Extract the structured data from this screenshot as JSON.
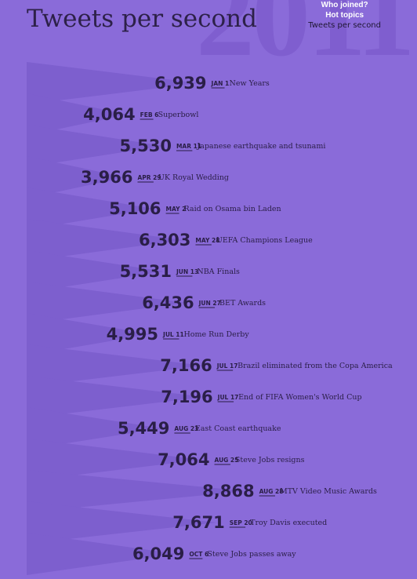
{
  "header": {
    "title": "Tweets per second",
    "background_year": "2011"
  },
  "nav": {
    "items": [
      {
        "label": "Who joined?",
        "style": "bold"
      },
      {
        "label": "Hot topics",
        "style": "bold"
      },
      {
        "label": "Tweets per second",
        "style": "current"
      }
    ]
  },
  "colors": {
    "background": "#8a6bd9",
    "wedge": "#7d5fce",
    "text": "#2a1e47"
  },
  "chart_data": {
    "type": "bar",
    "title": "Tweets per second",
    "xlim": [
      0,
      9500
    ],
    "categories": [
      "New Years",
      "Superbowl",
      "Japanese earthquake and tsunami",
      "UK Royal Wedding",
      "Raid on Osama bin Laden",
      "UEFA Champions League",
      "NBA Finals",
      "BET Awards",
      "Home Run Derby",
      "Brazil eliminated from the Copa America",
      "End of FIFA Women's World Cup",
      "East Coast earthquake",
      "Steve Jobs resigns",
      "MTV Video Music Awards",
      "Troy Davis executed",
      "Steve Jobs passes away"
    ],
    "dates": [
      "JAN 1",
      "FEB 6",
      "MAR 11",
      "APR 29",
      "MAY 2",
      "MAY 28",
      "JUN 13",
      "JUN 27",
      "JUL 11",
      "JUL 17",
      "JUL 17",
      "AUG 23",
      "AUG 25",
      "AUG 28",
      "SEP 20",
      "OCT 6"
    ],
    "values": [
      6939,
      4064,
      5530,
      3966,
      5106,
      6303,
      5531,
      6436,
      4995,
      7166,
      7196,
      5449,
      7064,
      8868,
      7671,
      6049
    ],
    "value_labels": [
      "6,939",
      "4,064",
      "5,530",
      "3,966",
      "5,106",
      "6,303",
      "5,531",
      "6,436",
      "4,995",
      "7,166",
      "7,196",
      "5,449",
      "7,064",
      "8,868",
      "7,671",
      "6,049"
    ]
  }
}
